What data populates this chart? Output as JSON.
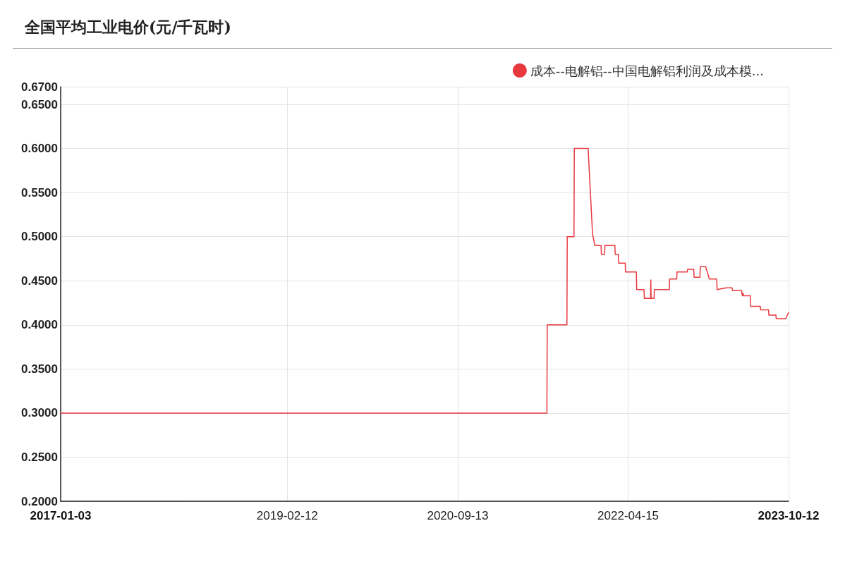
{
  "chart_data": {
    "type": "line",
    "title": "全国平均工业电价(元/千瓦时)",
    "series": [
      {
        "name": "成本--电解铝--中国电解铝利润及成本模...",
        "color": "#e8393f",
        "x": [
          "2017-01-03",
          "2021-07-13",
          "2021-07-14",
          "2021-09-19",
          "2021-09-20",
          "2021-10-13",
          "2021-10-14",
          "2021-11-30",
          "2021-12-15",
          "2021-12-23",
          "2022-01-13",
          "2022-01-14",
          "2022-01-25",
          "2022-01-26",
          "2022-03-01",
          "2022-03-02",
          "2022-03-13",
          "2022-03-14",
          "2022-04-05",
          "2022-04-06",
          "2022-05-13",
          "2022-05-14",
          "2022-06-08",
          "2022-06-09",
          "2022-06-30",
          "2022-07-01",
          "2022-07-02",
          "2022-07-12",
          "2022-07-13",
          "2022-09-02",
          "2022-09-03",
          "2022-09-27",
          "2022-09-28",
          "2022-11-02",
          "2022-11-03",
          "2022-11-24",
          "2022-11-25",
          "2022-12-15",
          "2022-12-16",
          "2023-01-03",
          "2023-01-16",
          "2023-02-10",
          "2023-02-11",
          "2023-03-15",
          "2023-04-03",
          "2023-04-04",
          "2023-05-05",
          "2023-05-08",
          "2023-05-10",
          "2023-05-12",
          "2023-06-04",
          "2023-06-05",
          "2023-07-08",
          "2023-07-09",
          "2023-08-05",
          "2023-08-06",
          "2023-08-30",
          "2023-08-31",
          "2023-10-02",
          "2023-10-12"
        ],
        "values": [
          0.3,
          0.3,
          0.4,
          0.4,
          0.5,
          0.5,
          0.6,
          0.6,
          0.503,
          0.49,
          0.49,
          0.48,
          0.48,
          0.49,
          0.49,
          0.48,
          0.48,
          0.47,
          0.47,
          0.46,
          0.46,
          0.44,
          0.44,
          0.43,
          0.43,
          0.451,
          0.43,
          0.43,
          0.44,
          0.44,
          0.452,
          0.452,
          0.46,
          0.46,
          0.463,
          0.463,
          0.454,
          0.454,
          0.466,
          0.466,
          0.452,
          0.452,
          0.44,
          0.442,
          0.442,
          0.439,
          0.439,
          0.433,
          0.436,
          0.433,
          0.433,
          0.421,
          0.421,
          0.417,
          0.417,
          0.411,
          0.411,
          0.407,
          0.407,
          0.414
        ]
      }
    ],
    "xlim": [
      "2017-01-03",
      "2023-10-12"
    ],
    "xticks": [
      "2017-01-03",
      "2019-02-12",
      "2020-09-13",
      "2022-04-15",
      "2023-10-12"
    ],
    "ylim": [
      0.2,
      0.67
    ],
    "yticks": [
      {
        "value": 0.2,
        "label": "0.2000"
      },
      {
        "value": 0.25,
        "label": "0.2500"
      },
      {
        "value": 0.3,
        "label": "0.3000"
      },
      {
        "value": 0.35,
        "label": "0.3500"
      },
      {
        "value": 0.4,
        "label": "0.4000"
      },
      {
        "value": 0.45,
        "label": "0.4500"
      },
      {
        "value": 0.5,
        "label": "0.5000"
      },
      {
        "value": 0.55,
        "label": "0.5500"
      },
      {
        "value": 0.6,
        "label": "0.6000"
      },
      {
        "value": 0.65,
        "label": "0.6500"
      },
      {
        "value": 0.67,
        "label": "0.6700"
      }
    ],
    "grid": true,
    "legend": "top right",
    "marker": "none",
    "line_style": "solid"
  }
}
